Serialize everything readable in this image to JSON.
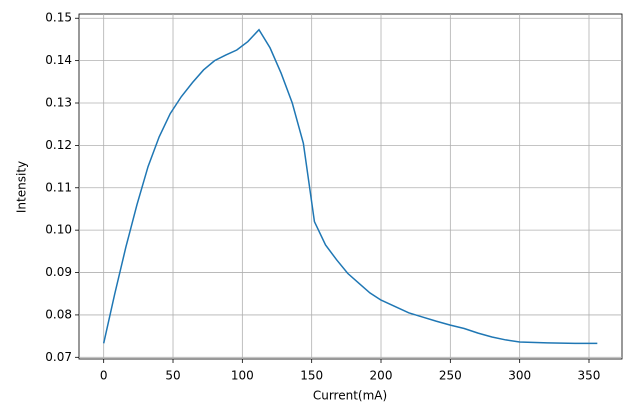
{
  "chart_data": {
    "type": "line",
    "x_label": "Current(mA)",
    "y_label": "Intensity",
    "x": [
      0,
      8,
      16,
      24,
      32,
      40,
      48,
      56,
      64,
      72,
      80,
      88,
      96,
      104,
      112,
      120,
      128,
      136,
      144,
      152,
      160,
      168,
      176,
      184,
      192,
      200,
      210,
      220,
      230,
      240,
      250,
      260,
      270,
      280,
      290,
      300,
      320,
      340,
      356
    ],
    "values": [
      0.0733,
      0.085,
      0.096,
      0.106,
      0.115,
      0.122,
      0.1275,
      0.1315,
      0.1348,
      0.1378,
      0.14,
      0.1413,
      0.1425,
      0.1445,
      0.1473,
      0.143,
      0.137,
      0.13,
      0.1205,
      0.102,
      0.0965,
      0.093,
      0.0898,
      0.0875,
      0.0852,
      0.0835,
      0.082,
      0.0805,
      0.0795,
      0.0785,
      0.0776,
      0.0768,
      0.0757,
      0.0748,
      0.0741,
      0.0736,
      0.0734,
      0.0733,
      0.0733
    ],
    "color": "#1f77b4",
    "xlim": [
      -17.8,
      373.8
    ],
    "xticks": [
      0,
      50,
      100,
      150,
      200,
      250,
      300,
      350
    ],
    "ylim": [
      0.0696,
      0.151
    ],
    "yticks": [
      0.07,
      0.08,
      0.09,
      {
        "value": 0.1,
        "label": "0.10"
      },
      0.11,
      0.12,
      0.13,
      0.14,
      0.15
    ],
    "grid": true
  }
}
